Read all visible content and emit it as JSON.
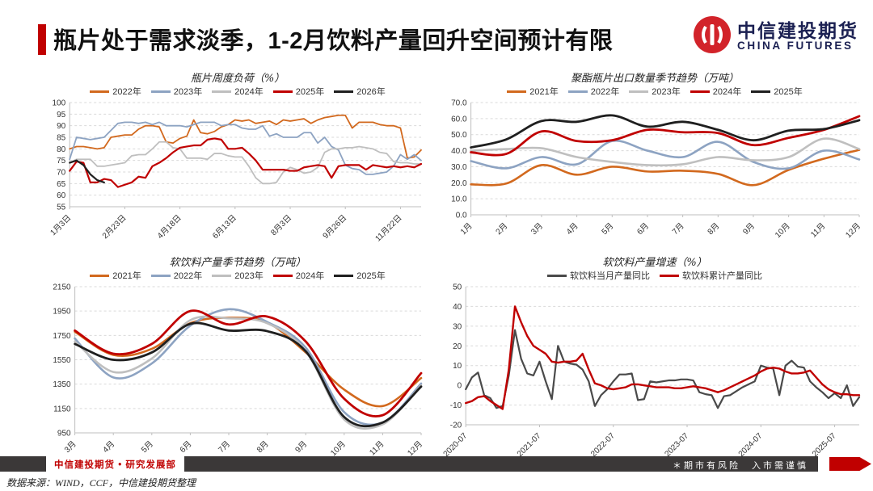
{
  "header": {
    "title": "瓶片处于需求淡季，1-2月饮料产量回升空间预计有限",
    "accent_color": "#C00000"
  },
  "logo": {
    "cn": "中信建投期货",
    "en": "CHINA FUTURES",
    "emblem": "citic-circle-emblem",
    "emblem_color": "#D2232A",
    "text_color": "#1B2052"
  },
  "footer": {
    "dept": "中信建投期货 • 研究发展部",
    "risk": "＊期市有风险　入市需谨慎",
    "source": "数据来源：WIND，CCF，中信建投期货整理"
  },
  "palette": {
    "orange": "#D2691E",
    "bluegray": "#8DA3C2",
    "gray": "#BFBFBF",
    "red": "#C00000",
    "black": "#1F1F1F",
    "darkgray": "#4A4A4A",
    "gridline": "#D9D9D9",
    "axis": "#BFBFBF"
  },
  "chart_data": [
    {
      "type": "line",
      "title": "瓶片周度负荷（%）",
      "ylim": [
        55,
        100
      ],
      "ystep": 5,
      "ydecimals": 0,
      "grid": "dashed-horizontal",
      "legend_position": "top",
      "smooth": false,
      "n_points": 52,
      "x_labels": [
        "1月3日",
        "2月23日",
        "4月18日",
        "6月13日",
        "8月3日",
        "9月26日",
        "11月22日"
      ],
      "tick_indices": [
        0,
        8,
        16,
        24,
        32,
        40,
        48
      ],
      "series": [
        {
          "name": "2022年",
          "color": "#D2691E",
          "width": 1.8,
          "values": [
            80,
            81,
            81,
            80.5,
            80,
            80.5,
            85,
            85.5,
            86,
            86,
            88.5,
            90,
            90,
            89.5,
            83,
            82.5,
            84.5,
            85.5,
            92.5,
            87,
            86.5,
            87.5,
            89.5,
            90.5,
            92.5,
            92,
            92.5,
            91,
            91.5,
            92,
            90.5,
            92.5,
            92,
            92.5,
            93,
            91,
            92.5,
            93.5,
            94,
            94.5,
            94.5,
            89,
            91.5,
            91.5,
            91.5,
            90.5,
            90,
            90,
            89,
            76,
            76.5,
            79.5
          ]
        },
        {
          "name": "2023年",
          "color": "#8DA3C2",
          "width": 1.8,
          "values": [
            75.5,
            85,
            84.5,
            84,
            84.5,
            85,
            88,
            91,
            91.5,
            91.5,
            91,
            91.5,
            90.5,
            91.5,
            90,
            90,
            90,
            89.5,
            90.5,
            91.5,
            91.5,
            91.5,
            90,
            90.5,
            90.5,
            89,
            88.5,
            88.5,
            90,
            85.5,
            86.5,
            85,
            85,
            85,
            87,
            87,
            82.5,
            85,
            81,
            79.5,
            73,
            71.5,
            71,
            69,
            69,
            69.5,
            70,
            72.5,
            77.5,
            75.5,
            77.5,
            75
          ]
        },
        {
          "name": "2024年",
          "color": "#BFBFBF",
          "width": 1.8,
          "values": [
            74,
            75.5,
            75.5,
            75.5,
            72.5,
            72.5,
            73,
            73.5,
            74,
            77,
            77.5,
            77.5,
            80,
            83,
            83,
            80.5,
            80,
            76,
            76,
            76,
            75.5,
            78,
            78,
            77,
            76.5,
            76.5,
            72.5,
            67.5,
            65,
            65,
            65.5,
            70,
            72,
            71,
            69.5,
            70,
            72,
            78.5,
            80,
            80,
            80.5,
            80.5,
            81,
            80.5,
            80,
            78.5,
            78,
            74.5,
            74,
            74,
            73.5,
            73.5
          ]
        },
        {
          "name": "2025年",
          "color": "#C00000",
          "width": 2.2,
          "values": [
            70.5,
            74.5,
            74,
            65.5,
            65.5,
            67,
            66.5,
            63.5,
            64.5,
            65.5,
            68,
            67.5,
            72.5,
            74,
            76,
            78.5,
            80.5,
            81,
            81.5,
            81.5,
            84,
            84.5,
            84,
            80,
            80,
            80.5,
            78,
            75,
            71,
            71,
            71,
            71,
            70.5,
            70.5,
            72,
            72.5,
            73,
            72.5,
            67.5,
            72.5,
            73,
            73,
            73,
            71,
            73,
            72.5,
            72,
            72.5,
            72,
            72.5,
            72,
            73.5
          ]
        },
        {
          "name": "2026年",
          "color": "#1F1F1F",
          "width": 2.2,
          "values": [
            74,
            75,
            73,
            69,
            66.5,
            65.5
          ]
        }
      ]
    },
    {
      "type": "line",
      "title": "聚酯瓶片出口数量季节趋势（万吨）",
      "ylim": [
        0,
        70
      ],
      "ystep": 10,
      "ydecimals": 1,
      "grid": "dashed-horizontal",
      "legend_position": "top",
      "smooth": true,
      "n_points": 12,
      "x_labels": [
        "1月",
        "2月",
        "3月",
        "4月",
        "5月",
        "6月",
        "7月",
        "8月",
        "9月",
        "10月",
        "11月",
        "12月"
      ],
      "tick_indices": [
        0,
        1,
        2,
        3,
        4,
        5,
        6,
        7,
        8,
        9,
        10,
        11
      ],
      "series": [
        {
          "name": "2021年",
          "color": "#D2691E",
          "width": 2.6,
          "values": [
            19,
            19.5,
            31,
            25,
            30,
            27,
            27.5,
            25.5,
            18.5,
            28,
            35,
            40.5
          ]
        },
        {
          "name": "2022年",
          "color": "#8DA3C2",
          "width": 2.6,
          "values": [
            33.5,
            29,
            36,
            31.5,
            46,
            40,
            36,
            45.5,
            33,
            29,
            40,
            34.5
          ]
        },
        {
          "name": "2023年",
          "color": "#BFBFBF",
          "width": 2.6,
          "values": [
            40,
            41,
            41.5,
            36,
            33,
            31,
            31.5,
            36,
            34,
            36,
            47.5,
            41
          ]
        },
        {
          "name": "2024年",
          "color": "#C00000",
          "width": 2.8,
          "values": [
            39,
            38,
            52,
            46,
            46.5,
            53,
            51.5,
            51,
            43.5,
            48,
            53,
            61.5
          ]
        },
        {
          "name": "2025年",
          "color": "#1F1F1F",
          "width": 2.8,
          "values": [
            42,
            47,
            58.5,
            58,
            62,
            55,
            58,
            53,
            46.5,
            52.5,
            53.5,
            59
          ]
        }
      ]
    },
    {
      "type": "line",
      "title": "软饮料产量季节趋势（万吨）",
      "ylim": [
        950,
        2150
      ],
      "ystep": 200,
      "ydecimals": 0,
      "grid": "dashed-horizontal",
      "legend_position": "top",
      "smooth": true,
      "n_points": 10,
      "x_labels": [
        "3月",
        "4月",
        "5月",
        "6月",
        "7月",
        "8月",
        "9月",
        "10月",
        "11月",
        "12月"
      ],
      "tick_indices": [
        0,
        1,
        2,
        3,
        4,
        5,
        6,
        7,
        8,
        9
      ],
      "series": [
        {
          "name": "2021年",
          "color": "#D2691E",
          "width": 2.6,
          "values": [
            1780,
            1590,
            1640,
            1850,
            1895,
            1855,
            1610,
            1305,
            1170,
            1400
          ]
        },
        {
          "name": "2022年",
          "color": "#8DA3C2",
          "width": 2.6,
          "values": [
            1725,
            1405,
            1520,
            1830,
            1965,
            1860,
            1650,
            1120,
            1035,
            1355
          ]
        },
        {
          "name": "2023年",
          "color": "#BFBFBF",
          "width": 2.6,
          "values": [
            1700,
            1450,
            1560,
            1875,
            1890,
            1850,
            1620,
            1060,
            1020,
            1340
          ]
        },
        {
          "name": "2024年",
          "color": "#C00000",
          "width": 2.8,
          "values": [
            1790,
            1600,
            1680,
            1950,
            1840,
            1905,
            1700,
            1230,
            1095,
            1440
          ]
        },
        {
          "name": "2025年",
          "color": "#1F1F1F",
          "width": 2.8,
          "values": [
            1680,
            1550,
            1610,
            1845,
            1790,
            1785,
            1620,
            1080,
            1035,
            1330
          ]
        }
      ]
    },
    {
      "type": "line",
      "title": "软饮料产量增速（%）",
      "ylim": [
        -20,
        50
      ],
      "ystep": 10,
      "ydecimals": 0,
      "grid": "dashed-horizontal",
      "legend_position": "top",
      "smooth": false,
      "n_points": 65,
      "x_labels": [
        "2020-07",
        "2021-07",
        "2022-07",
        "2023-07",
        "2024-07",
        "2025-07"
      ],
      "tick_indices": [
        0,
        12,
        24,
        36,
        48,
        60
      ],
      "series": [
        {
          "name": "软饮料当月产量同比",
          "color": "#4A4A4A",
          "width": 2.2,
          "values": [
            -2,
            4,
            6.5,
            -5,
            -6.5,
            -11.5,
            -10.5,
            5,
            28,
            13.5,
            6,
            5,
            12,
            2,
            -7,
            20,
            12,
            11,
            10.5,
            8,
            2,
            -10.5,
            -5,
            -2,
            2,
            5.5,
            5.5,
            6,
            -7.5,
            -7,
            2,
            1.5,
            2,
            2.5,
            2.5,
            3,
            3,
            2.5,
            -3.5,
            -4.5,
            -5,
            -11.5,
            -5.5,
            -5,
            -3,
            -1,
            0.5,
            2,
            10,
            9,
            8.5,
            -5,
            10,
            12.5,
            9.5,
            9,
            2,
            -1,
            -3.5,
            -6.5,
            -4,
            -6.5,
            0,
            -10.5,
            -6
          ]
        },
        {
          "name": "软饮料累计产量同比",
          "color": "#C00000",
          "width": 2.4,
          "values": [
            -9,
            -8,
            -6,
            -5.5,
            -8,
            -10,
            -12,
            8,
            40,
            32,
            25,
            20,
            18,
            16,
            12,
            11.5,
            12,
            12,
            12.5,
            16,
            8,
            1,
            0,
            -1.5,
            -2,
            -1.5,
            -1,
            0.5,
            0.5,
            0,
            -0.5,
            -1,
            -1,
            -1,
            -1.5,
            -1.5,
            -1,
            -0.5,
            -1,
            -1.5,
            -2.5,
            -3.5,
            -2.5,
            -1,
            0.5,
            2,
            3.5,
            5,
            7,
            8.5,
            9,
            8.5,
            7,
            6,
            6,
            6.5,
            7.5,
            4,
            0.5,
            -2,
            -3.5,
            -4.5,
            -4.5,
            -5,
            -5
          ]
        }
      ]
    }
  ]
}
